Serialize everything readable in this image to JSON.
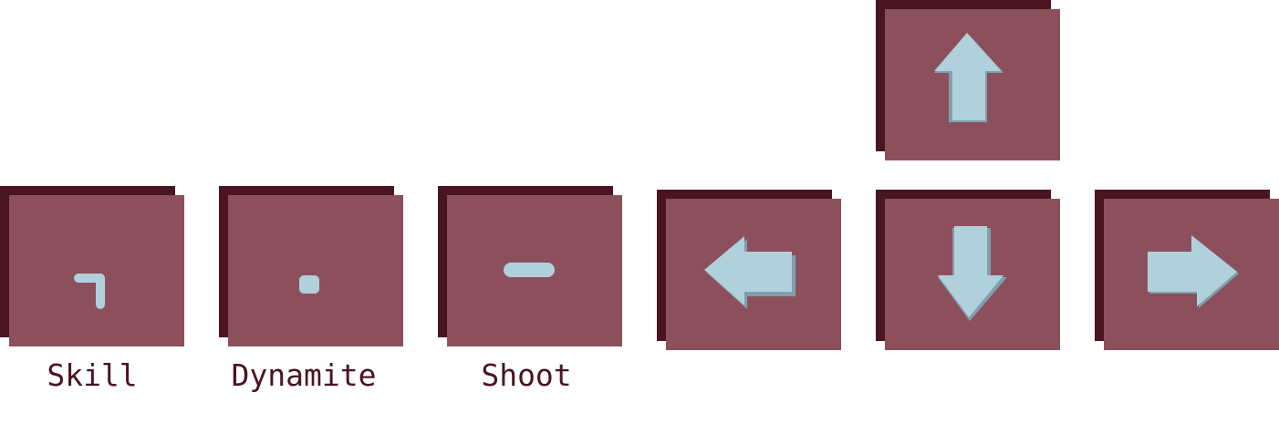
{
  "colors": {
    "key_face": "#8c505d",
    "key_shadow": "#4a1420",
    "glyph": "#b0d1dc",
    "glyph_shade": "#7f9fae",
    "label": "#4a1420",
    "background": "#ffffff"
  },
  "keys": [
    {
      "id": "skill",
      "key": "¬",
      "label": "Skill",
      "icon": "not-sign-icon"
    },
    {
      "id": "dynamite",
      "key": ".",
      "label": "Dynamite",
      "icon": "period-icon"
    },
    {
      "id": "shoot",
      "key": "-",
      "label": "Shoot",
      "icon": "minus-icon"
    },
    {
      "id": "left",
      "key": "←",
      "label": "",
      "icon": "arrow-left-icon"
    },
    {
      "id": "up",
      "key": "↑",
      "label": "",
      "icon": "arrow-up-icon"
    },
    {
      "id": "down",
      "key": "↓",
      "label": "",
      "icon": "arrow-down-icon"
    },
    {
      "id": "right",
      "key": "→",
      "label": "",
      "icon": "arrow-right-icon"
    }
  ]
}
